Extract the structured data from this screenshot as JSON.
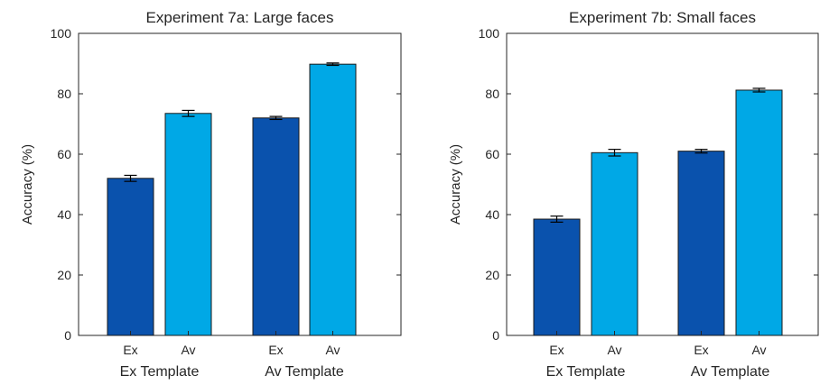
{
  "chart_data": [
    {
      "type": "bar",
      "title": "Experiment 7a: Large faces",
      "xlabel": "",
      "ylabel": "Accuracy (%)",
      "ylim": [
        0,
        100
      ],
      "yticks": [
        "0",
        "20",
        "40",
        "60",
        "80",
        "100"
      ],
      "groups": [
        {
          "label": "Ex Template",
          "bars": [
            {
              "label": "Ex",
              "value": 52.0,
              "error": 1.0,
              "color": "#0a52ad"
            },
            {
              "label": "Av",
              "value": 73.5,
              "error": 1.0,
              "color": "#00a8e6"
            }
          ]
        },
        {
          "label": "Av Template",
          "bars": [
            {
              "label": "Ex",
              "value": 72.0,
              "error": 0.5,
              "color": "#0a52ad"
            },
            {
              "label": "Av",
              "value": 89.8,
              "error": 0.4,
              "color": "#00a8e6"
            }
          ]
        }
      ],
      "grid": false,
      "legend": "none"
    },
    {
      "type": "bar",
      "title": "Experiment 7b: Small faces",
      "xlabel": "",
      "ylabel": "Accuracy (%)",
      "ylim": [
        0,
        100
      ],
      "yticks": [
        "0",
        "20",
        "40",
        "60",
        "80",
        "100"
      ],
      "groups": [
        {
          "label": "Ex Template",
          "bars": [
            {
              "label": "Ex",
              "value": 38.5,
              "error": 1.0,
              "color": "#0a52ad"
            },
            {
              "label": "Av",
              "value": 60.5,
              "error": 1.1,
              "color": "#00a8e6"
            }
          ]
        },
        {
          "label": "Av Template",
          "bars": [
            {
              "label": "Ex",
              "value": 61.0,
              "error": 0.6,
              "color": "#0a52ad"
            },
            {
              "label": "Av",
              "value": 81.2,
              "error": 0.6,
              "color": "#00a8e6"
            }
          ]
        }
      ],
      "grid": false,
      "legend": "none"
    }
  ]
}
